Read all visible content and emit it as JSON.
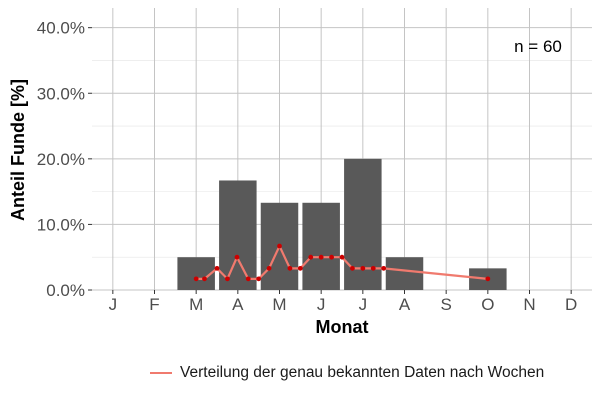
{
  "chart_data": {
    "type": "bar",
    "categories": [
      "J",
      "F",
      "M",
      "A",
      "M",
      "J",
      "J",
      "A",
      "S",
      "O",
      "N",
      "D"
    ],
    "values": [
      0,
      0,
      5.0,
      16.7,
      13.3,
      13.3,
      20.0,
      5.0,
      0,
      3.3,
      0,
      0
    ],
    "ylim": [
      0,
      43
    ],
    "y_ticks": [
      0,
      10,
      20,
      30,
      40
    ],
    "y_tick_labels": [
      "0.0%",
      "10.0%",
      "20.0%",
      "30.0%",
      "40.0%"
    ],
    "xlabel": "Monat",
    "ylabel": "Anteil Funde [%]",
    "annotation": "n = 60",
    "grid": true,
    "bar_color": "#595959",
    "line_series": {
      "name": "Verteilung der genau bekannten Daten nach Wochen",
      "color": "#f07a6e",
      "point_color": "#cc0000",
      "x_month": [
        3.0,
        3.2,
        3.5,
        3.75,
        3.98,
        4.25,
        4.5,
        4.75,
        5.0,
        5.25,
        5.5,
        5.75,
        6.0,
        6.25,
        6.5,
        6.75,
        7.0,
        7.25,
        7.5,
        10.0
      ],
      "y": [
        1.7,
        1.7,
        3.3,
        1.7,
        5.0,
        1.7,
        1.7,
        3.3,
        6.7,
        3.3,
        3.3,
        5.0,
        5.0,
        5.0,
        5.0,
        3.3,
        3.3,
        3.3,
        3.3,
        1.7
      ]
    },
    "legend_position": "bottom"
  }
}
